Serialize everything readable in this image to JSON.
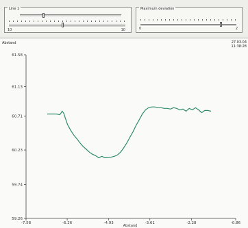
{
  "toolbar": {
    "line_group": {
      "title": "Line 1",
      "min_label": "10",
      "max_label": "10",
      "slider1_value": 0.22,
      "slider2_value": 0.45
    },
    "deviation_group": {
      "title": "Maximum deviation",
      "min_label": "0",
      "max_label": "2",
      "slider_value": 0.83
    }
  },
  "plot": {
    "y_axis_title": "Abstand",
    "x_axis_title": "Abstand",
    "date": "27.03.04",
    "time": "11:38:28"
  },
  "chart_data": {
    "type": "line",
    "title": "",
    "xlabel": "Abstand",
    "ylabel": "Abstand",
    "xlim": [
      -7.58,
      -0.86
    ],
    "ylim": [
      59.26,
      61.58
    ],
    "x_ticks": [
      "-7.58",
      "-6.26",
      "-4.93",
      "-3.61",
      "-2.28",
      "-0.86"
    ],
    "y_ticks": [
      "61.58",
      "61.13",
      "60.71",
      "60.23",
      "59.74",
      "59.26"
    ],
    "x_tick_values": [
      -7.58,
      -6.26,
      -4.93,
      -3.61,
      -2.28,
      -0.86
    ],
    "y_tick_values": [
      61.58,
      61.13,
      60.71,
      60.23,
      59.74,
      59.26
    ],
    "line_color": "#2e8b6a",
    "series": [
      {
        "x": [
          -6.9,
          -6.75,
          -6.6,
          -6.5,
          -6.45,
          -6.42,
          -6.37,
          -6.32,
          -6.25,
          -6.15,
          -6.05,
          -5.95,
          -5.85,
          -5.75,
          -5.65,
          -5.55,
          -5.45,
          -5.35,
          -5.25,
          -5.15,
          -5.05,
          -4.95,
          -4.85,
          -4.75,
          -4.65,
          -4.55,
          -4.45,
          -4.35,
          -4.25,
          -4.15,
          -4.05,
          -3.95,
          -3.85,
          -3.75,
          -3.65,
          -3.55,
          -3.45,
          -3.35,
          -3.25,
          -3.15,
          -3.05,
          -2.95,
          -2.85,
          -2.75,
          -2.65,
          -2.55,
          -2.45,
          -2.35,
          -2.25,
          -2.15,
          -2.05,
          -1.95,
          -1.85,
          -1.75,
          -1.65
        ],
        "y": [
          60.74,
          60.74,
          60.74,
          60.73,
          60.76,
          60.78,
          60.75,
          60.68,
          60.59,
          60.51,
          60.44,
          60.39,
          60.33,
          60.28,
          60.24,
          60.2,
          60.17,
          60.15,
          60.12,
          60.14,
          60.12,
          60.12,
          60.13,
          60.14,
          60.16,
          60.2,
          60.26,
          60.33,
          60.41,
          60.49,
          60.58,
          60.66,
          60.74,
          60.8,
          60.83,
          60.84,
          60.84,
          60.83,
          60.83,
          60.82,
          60.82,
          60.81,
          60.83,
          60.82,
          60.8,
          60.81,
          60.78,
          60.82,
          60.8,
          60.83,
          60.8,
          60.76,
          60.79,
          60.79,
          60.78
        ]
      }
    ],
    "grid": false,
    "legend": "none"
  }
}
